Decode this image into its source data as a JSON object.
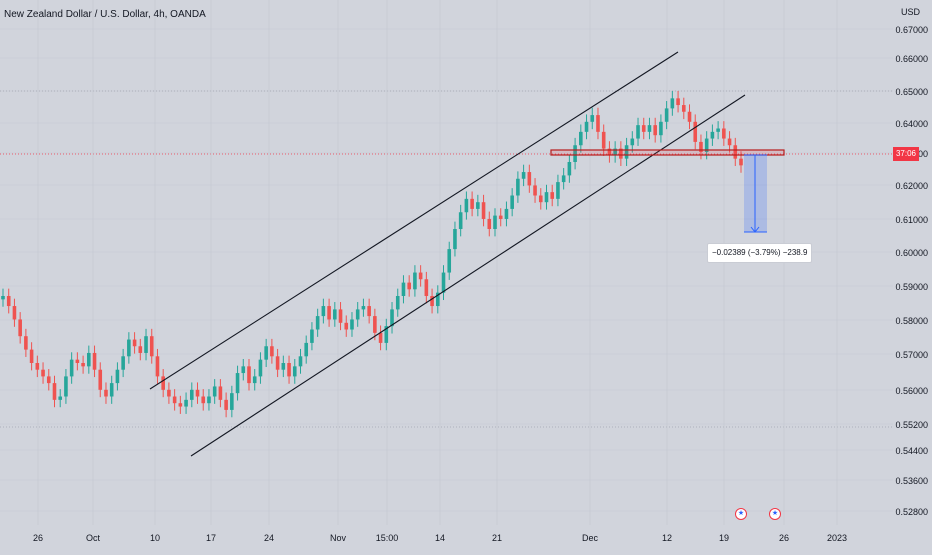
{
  "chart_data": {
    "type": "candlestick",
    "title": "New Zealand Dollar / U.S. Dollar, 4h, OANDA",
    "currency": "USD",
    "y_ticks": [
      "0.67000",
      "0.66000",
      "0.65000",
      "0.64000",
      "0.63000",
      "0.62000",
      "0.61000",
      "0.60000",
      "0.59000",
      "0.58000",
      "0.57000",
      "0.56000",
      "0.55200",
      "0.54400",
      "0.53600",
      "0.52800"
    ],
    "x_ticks": [
      "26",
      "Oct",
      "10",
      "17",
      "24",
      "Nov",
      "15:00",
      "14",
      "21",
      "Dec",
      "12",
      "19",
      "26",
      "2023"
    ],
    "last_price_label": "37:06",
    "trend_channel": {
      "upper": [
        [
          "Oct 10",
          0.562
        ],
        [
          "Dec 18",
          0.664
        ]
      ],
      "lower": [
        [
          "Oct 13",
          0.544
        ],
        [
          "Dec 23",
          0.649
        ]
      ]
    },
    "support_zone": [
      0.6305,
      0.6315
    ],
    "price_range_measure": {
      "label": "−0.02389 (−3.79%) −238.9",
      "from": 0.6305,
      "to": 0.6066
    },
    "series": [
      {
        "values": [
          [
            0.589,
            0.59
          ],
          [
            0.59,
            0.587
          ],
          [
            0.587,
            0.583
          ],
          [
            0.583,
            0.578
          ],
          [
            0.578,
            0.574
          ],
          [
            0.574,
            0.57
          ],
          [
            0.57,
            0.568
          ],
          [
            0.568,
            0.566
          ],
          [
            0.566,
            0.564
          ],
          [
            0.564,
            0.559
          ],
          [
            0.559,
            0.56
          ],
          [
            0.56,
            0.566
          ],
          [
            0.566,
            0.571
          ],
          [
            0.571,
            0.57
          ],
          [
            0.57,
            0.569
          ],
          [
            0.569,
            0.573
          ],
          [
            0.573,
            0.568
          ],
          [
            0.568,
            0.562
          ],
          [
            0.562,
            0.56
          ],
          [
            0.56,
            0.564
          ],
          [
            0.564,
            0.568
          ],
          [
            0.568,
            0.572
          ],
          [
            0.572,
            0.577
          ],
          [
            0.577,
            0.575
          ],
          [
            0.575,
            0.573
          ],
          [
            0.573,
            0.578
          ],
          [
            0.578,
            0.572
          ],
          [
            0.572,
            0.566
          ],
          [
            0.566,
            0.562
          ],
          [
            0.562,
            0.56
          ],
          [
            0.56,
            0.558
          ],
          [
            0.558,
            0.557
          ],
          [
            0.557,
            0.559
          ],
          [
            0.559,
            0.562
          ],
          [
            0.562,
            0.56
          ],
          [
            0.56,
            0.558
          ],
          [
            0.558,
            0.56
          ],
          [
            0.56,
            0.563
          ],
          [
            0.563,
            0.559
          ],
          [
            0.559,
            0.556
          ],
          [
            0.556,
            0.561
          ],
          [
            0.561,
            0.567
          ],
          [
            0.567,
            0.569
          ],
          [
            0.569,
            0.564
          ],
          [
            0.564,
            0.566
          ],
          [
            0.566,
            0.571
          ],
          [
            0.571,
            0.575
          ],
          [
            0.575,
            0.572
          ],
          [
            0.572,
            0.568
          ],
          [
            0.568,
            0.57
          ],
          [
            0.57,
            0.566
          ],
          [
            0.566,
            0.569
          ],
          [
            0.569,
            0.572
          ],
          [
            0.572,
            0.576
          ],
          [
            0.576,
            0.58
          ],
          [
            0.58,
            0.584
          ],
          [
            0.584,
            0.587
          ],
          [
            0.587,
            0.583
          ],
          [
            0.583,
            0.586
          ],
          [
            0.586,
            0.582
          ],
          [
            0.582,
            0.58
          ],
          [
            0.58,
            0.583
          ],
          [
            0.583,
            0.586
          ],
          [
            0.586,
            0.587
          ],
          [
            0.587,
            0.584
          ],
          [
            0.584,
            0.579
          ],
          [
            0.579,
            0.576
          ],
          [
            0.576,
            0.581
          ],
          [
            0.581,
            0.586
          ],
          [
            0.586,
            0.59
          ],
          [
            0.59,
            0.594
          ],
          [
            0.594,
            0.592
          ],
          [
            0.592,
            0.597
          ],
          [
            0.597,
            0.595
          ],
          [
            0.595,
            0.59
          ],
          [
            0.59,
            0.587
          ],
          [
            0.587,
            0.591
          ],
          [
            0.591,
            0.597
          ],
          [
            0.597,
            0.604
          ],
          [
            0.604,
            0.61
          ],
          [
            0.61,
            0.615
          ],
          [
            0.615,
            0.619
          ],
          [
            0.619,
            0.616
          ],
          [
            0.616,
            0.618
          ],
          [
            0.618,
            0.613
          ],
          [
            0.613,
            0.61
          ],
          [
            0.61,
            0.614
          ],
          [
            0.614,
            0.613
          ],
          [
            0.613,
            0.616
          ],
          [
            0.616,
            0.62
          ],
          [
            0.62,
            0.625
          ],
          [
            0.625,
            0.627
          ],
          [
            0.627,
            0.623
          ],
          [
            0.623,
            0.62
          ],
          [
            0.62,
            0.618
          ],
          [
            0.618,
            0.621
          ],
          [
            0.621,
            0.619
          ],
          [
            0.619,
            0.624
          ],
          [
            0.624,
            0.626
          ],
          [
            0.626,
            0.63
          ],
          [
            0.63,
            0.635
          ],
          [
            0.635,
            0.639
          ],
          [
            0.639,
            0.642
          ],
          [
            0.642,
            0.644
          ],
          [
            0.644,
            0.639
          ],
          [
            0.639,
            0.634
          ],
          [
            0.634,
            0.632
          ],
          [
            0.632,
            0.634
          ],
          [
            0.634,
            0.631
          ],
          [
            0.631,
            0.635
          ],
          [
            0.635,
            0.637
          ],
          [
            0.637,
            0.641
          ],
          [
            0.641,
            0.639
          ],
          [
            0.639,
            0.641
          ],
          [
            0.641,
            0.638
          ],
          [
            0.638,
            0.642
          ],
          [
            0.642,
            0.646
          ],
          [
            0.646,
            0.649
          ],
          [
            0.649,
            0.647
          ],
          [
            0.647,
            0.645
          ],
          [
            0.645,
            0.642
          ],
          [
            0.642,
            0.636
          ],
          [
            0.636,
            0.633
          ],
          [
            0.633,
            0.637
          ],
          [
            0.637,
            0.639
          ],
          [
            0.639,
            0.64
          ],
          [
            0.64,
            0.637
          ],
          [
            0.637,
            0.635
          ],
          [
            0.635,
            0.631
          ],
          [
            0.631,
            0.629
          ]
        ]
      }
    ]
  }
}
